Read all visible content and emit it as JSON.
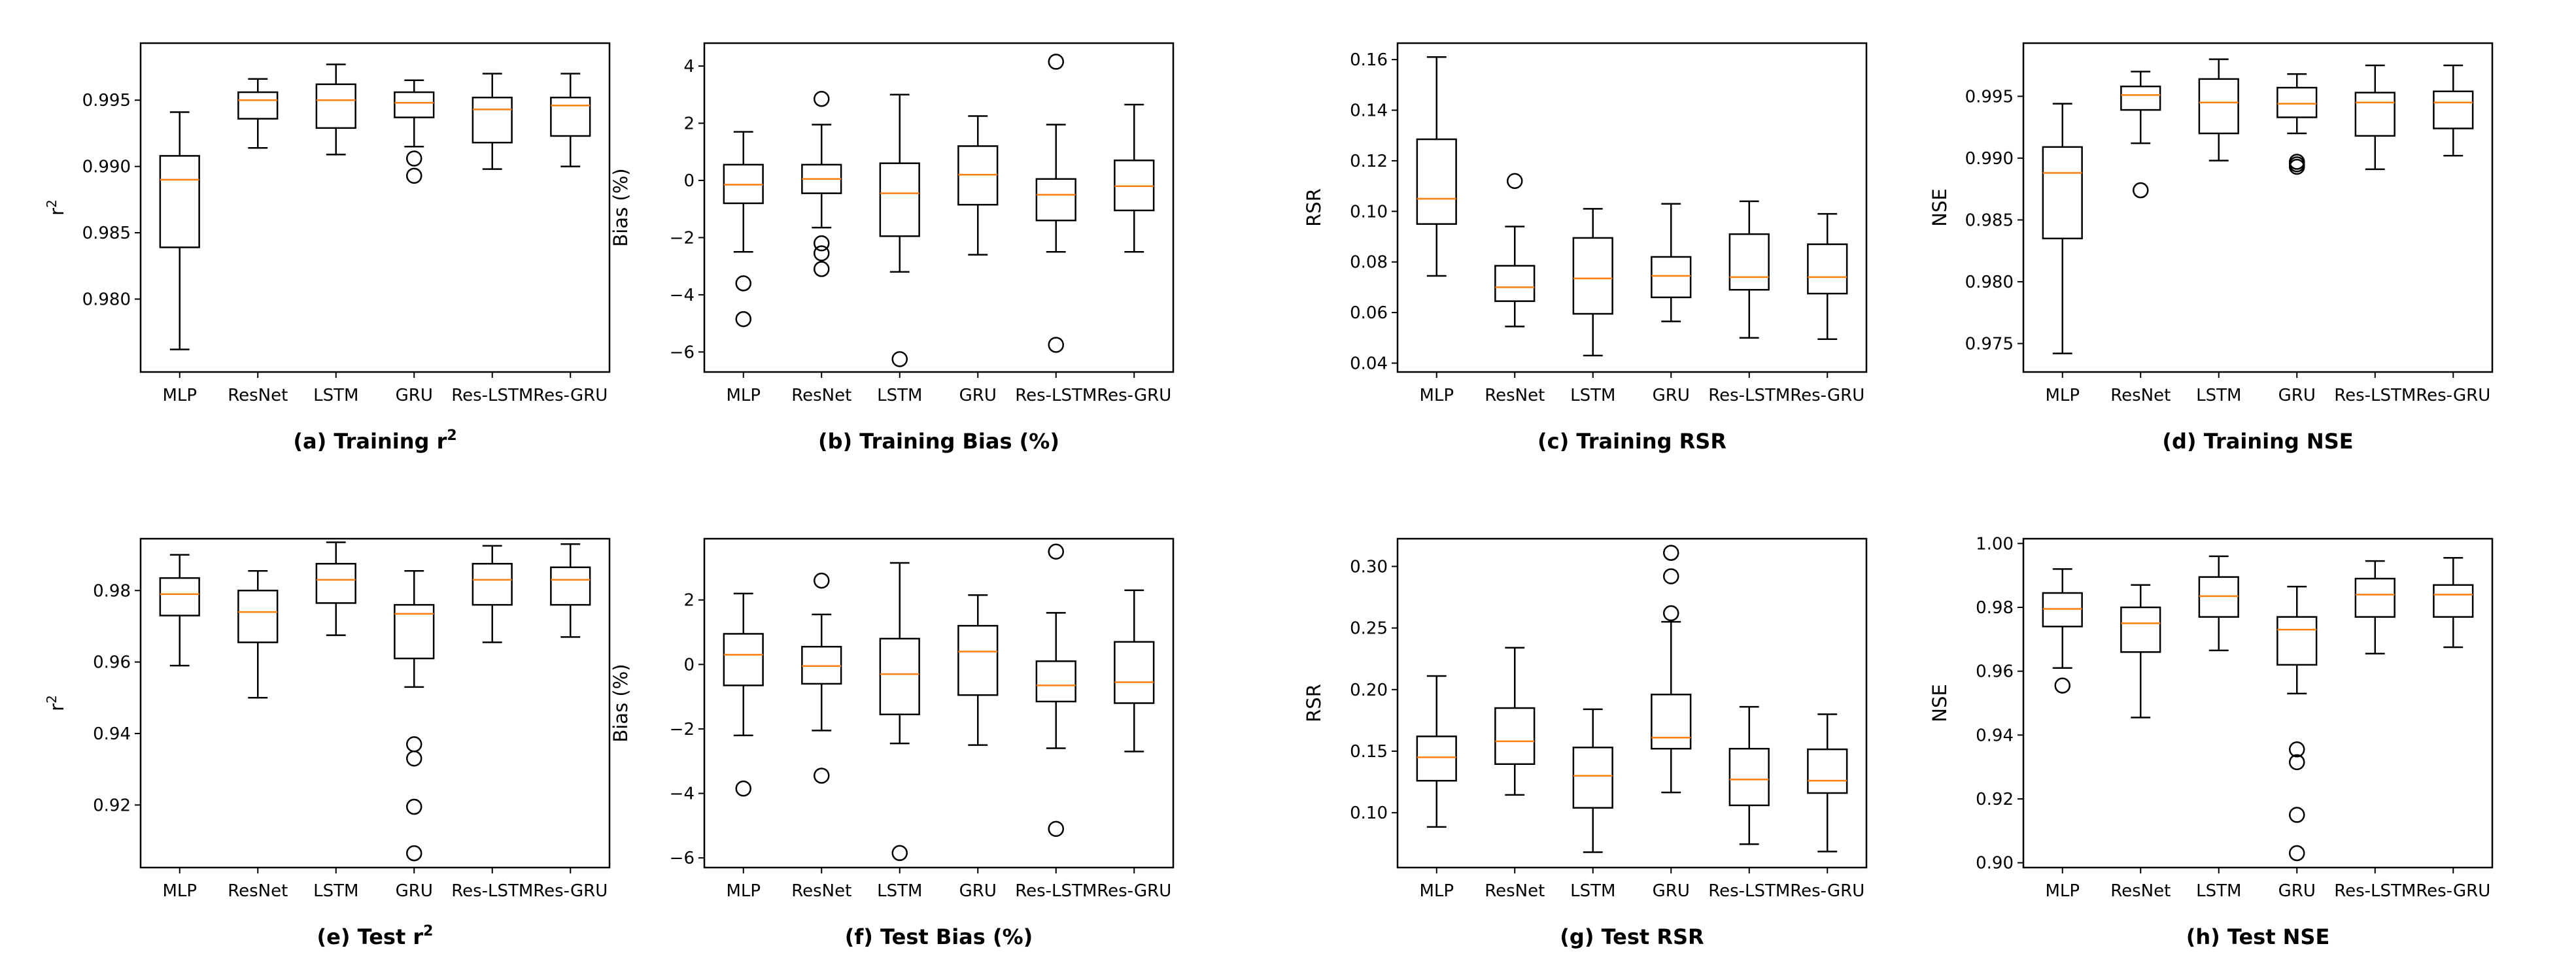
{
  "figure": {
    "categories": [
      "MLP",
      "ResNet",
      "LSTM",
      "GRU",
      "Res-LSTM",
      "Res-GRU"
    ],
    "colors": {
      "box": "#000000",
      "median": "#ff7f0e",
      "background": "#ffffff"
    }
  },
  "chart_data": [
    {
      "id": "a",
      "type": "box",
      "caption": "(a) Training r",
      "caption_sup": "2",
      "ylabel": "r",
      "ylabel_sup": "2",
      "ylim": [
        0.9745,
        0.9993
      ],
      "yticks": [
        0.98,
        0.985,
        0.99,
        0.995
      ],
      "ytick_labels": [
        "0.980",
        "0.985",
        "0.990",
        "0.995"
      ],
      "boxes": [
        {
          "min": 0.9762,
          "q1": 0.9839,
          "median": 0.989,
          "q3": 0.9908,
          "max": 0.9941,
          "outliers": []
        },
        {
          "min": 0.9914,
          "q1": 0.9936,
          "median": 0.995,
          "q3": 0.9956,
          "max": 0.9966,
          "outliers": []
        },
        {
          "min": 0.9909,
          "q1": 0.9929,
          "median": 0.995,
          "q3": 0.9962,
          "max": 0.9977,
          "outliers": []
        },
        {
          "min": 0.9915,
          "q1": 0.9937,
          "median": 0.9948,
          "q3": 0.9956,
          "max": 0.9965,
          "outliers": [
            0.9906,
            0.9893
          ]
        },
        {
          "min": 0.9898,
          "q1": 0.9918,
          "median": 0.9943,
          "q3": 0.9952,
          "max": 0.997,
          "outliers": []
        },
        {
          "min": 0.99,
          "q1": 0.9923,
          "median": 0.9946,
          "q3": 0.9952,
          "max": 0.997,
          "outliers": []
        }
      ]
    },
    {
      "id": "b",
      "type": "box",
      "caption": "(b) Training Bias (%)",
      "ylabel": "Bias (%)",
      "ylim": [
        -6.7,
        4.8
      ],
      "yticks": [
        -6,
        -4,
        -2,
        0,
        2,
        4
      ],
      "ytick_labels": [
        "−6",
        "−4",
        "−2",
        "0",
        "2",
        "4"
      ],
      "boxes": [
        {
          "min": -2.5,
          "q1": -0.8,
          "median": -0.15,
          "q3": 0.55,
          "max": 1.7,
          "outliers": [
            -3.6,
            -4.85
          ]
        },
        {
          "min": -1.65,
          "q1": -0.45,
          "median": 0.05,
          "q3": 0.55,
          "max": 1.95,
          "outliers": [
            2.85,
            -2.2,
            -2.55,
            -3.1
          ]
        },
        {
          "min": -3.2,
          "q1": -1.95,
          "median": -0.45,
          "q3": 0.6,
          "max": 3.0,
          "outliers": [
            -6.25
          ]
        },
        {
          "min": -2.6,
          "q1": -0.85,
          "median": 0.2,
          "q3": 1.2,
          "max": 2.25,
          "outliers": []
        },
        {
          "min": -2.5,
          "q1": -1.4,
          "median": -0.5,
          "q3": 0.05,
          "max": 1.95,
          "outliers": [
            4.15,
            -5.75
          ]
        },
        {
          "min": -2.5,
          "q1": -1.05,
          "median": -0.2,
          "q3": 0.7,
          "max": 2.65,
          "outliers": []
        }
      ]
    },
    {
      "id": "c",
      "type": "box",
      "caption": "(c) Training RSR",
      "ylabel": "RSR",
      "ylim": [
        0.0365,
        0.1665
      ],
      "yticks": [
        0.04,
        0.06,
        0.08,
        0.1,
        0.12,
        0.14,
        0.16
      ],
      "ytick_labels": [
        "0.04",
        "0.06",
        "0.08",
        "0.10",
        "0.12",
        "0.14",
        "0.16"
      ],
      "boxes": [
        {
          "min": 0.0745,
          "q1": 0.095,
          "median": 0.105,
          "q3": 0.1285,
          "max": 0.161,
          "outliers": []
        },
        {
          "min": 0.0545,
          "q1": 0.0645,
          "median": 0.07,
          "q3": 0.0785,
          "max": 0.094,
          "outliers": [
            0.112
          ]
        },
        {
          "min": 0.043,
          "q1": 0.0595,
          "median": 0.0735,
          "q3": 0.0895,
          "max": 0.101,
          "outliers": []
        },
        {
          "min": 0.0565,
          "q1": 0.066,
          "median": 0.0745,
          "q3": 0.082,
          "max": 0.103,
          "outliers": []
        },
        {
          "min": 0.05,
          "q1": 0.069,
          "median": 0.074,
          "q3": 0.091,
          "max": 0.104,
          "outliers": []
        },
        {
          "min": 0.0495,
          "q1": 0.0675,
          "median": 0.074,
          "q3": 0.087,
          "max": 0.099,
          "outliers": []
        }
      ]
    },
    {
      "id": "d",
      "type": "box",
      "caption": "(d) Training NSE",
      "ylabel": "NSE",
      "ylim": [
        0.9727,
        0.9993
      ],
      "yticks": [
        0.975,
        0.98,
        0.985,
        0.99,
        0.995
      ],
      "ytick_labels": [
        "0.975",
        "0.980",
        "0.985",
        "0.990",
        "0.995"
      ],
      "boxes": [
        {
          "min": 0.9742,
          "q1": 0.9835,
          "median": 0.9888,
          "q3": 0.9909,
          "max": 0.9944,
          "outliers": []
        },
        {
          "min": 0.9912,
          "q1": 0.9939,
          "median": 0.9951,
          "q3": 0.9958,
          "max": 0.997,
          "outliers": [
            0.9874
          ]
        },
        {
          "min": 0.9898,
          "q1": 0.992,
          "median": 0.9945,
          "q3": 0.9964,
          "max": 0.998,
          "outliers": []
        },
        {
          "min": 0.992,
          "q1": 0.9933,
          "median": 0.9944,
          "q3": 0.9957,
          "max": 0.9968,
          "outliers": [
            0.9897,
            0.9895,
            0.9893
          ]
        },
        {
          "min": 0.9891,
          "q1": 0.9918,
          "median": 0.9945,
          "q3": 0.9953,
          "max": 0.9975,
          "outliers": []
        },
        {
          "min": 0.9902,
          "q1": 0.9924,
          "median": 0.9945,
          "q3": 0.9954,
          "max": 0.9975,
          "outliers": []
        }
      ]
    },
    {
      "id": "e",
      "type": "box",
      "caption": "(e) Test r",
      "caption_sup": "2",
      "ylabel": "r",
      "ylabel_sup": "2",
      "ylim": [
        0.9025,
        0.9945
      ],
      "yticks": [
        0.92,
        0.94,
        0.96,
        0.98
      ],
      "ytick_labels": [
        "0.92",
        "0.94",
        "0.96",
        "0.98"
      ],
      "boxes": [
        {
          "min": 0.959,
          "q1": 0.973,
          "median": 0.979,
          "q3": 0.9835,
          "max": 0.99,
          "outliers": []
        },
        {
          "min": 0.95,
          "q1": 0.9655,
          "median": 0.974,
          "q3": 0.98,
          "max": 0.9855,
          "outliers": []
        },
        {
          "min": 0.9675,
          "q1": 0.9765,
          "median": 0.983,
          "q3": 0.9875,
          "max": 0.9935,
          "outliers": []
        },
        {
          "min": 0.953,
          "q1": 0.961,
          "median": 0.9735,
          "q3": 0.976,
          "max": 0.9855,
          "outliers": [
            0.937,
            0.933,
            0.9195,
            0.9065
          ]
        },
        {
          "min": 0.9655,
          "q1": 0.976,
          "median": 0.983,
          "q3": 0.9875,
          "max": 0.9925,
          "outliers": []
        },
        {
          "min": 0.967,
          "q1": 0.976,
          "median": 0.983,
          "q3": 0.9865,
          "max": 0.993,
          "outliers": []
        }
      ]
    },
    {
      "id": "f",
      "type": "box",
      "caption": "(f) Test Bias (%)",
      "ylabel": "Bias (%)",
      "ylim": [
        -6.3,
        3.9
      ],
      "yticks": [
        -6,
        -4,
        -2,
        0,
        2
      ],
      "ytick_labels": [
        "−6",
        "−4",
        "−2",
        "0",
        "2"
      ],
      "boxes": [
        {
          "min": -2.2,
          "q1": -0.65,
          "median": 0.3,
          "q3": 0.95,
          "max": 2.2,
          "outliers": [
            -3.85
          ]
        },
        {
          "min": -2.05,
          "q1": -0.6,
          "median": -0.05,
          "q3": 0.55,
          "max": 1.55,
          "outliers": [
            2.6,
            -3.45
          ]
        },
        {
          "min": -2.45,
          "q1": -1.55,
          "median": -0.3,
          "q3": 0.8,
          "max": 3.15,
          "outliers": [
            -5.85
          ]
        },
        {
          "min": -2.5,
          "q1": -0.95,
          "median": 0.4,
          "q3": 1.2,
          "max": 2.15,
          "outliers": []
        },
        {
          "min": -2.6,
          "q1": -1.15,
          "median": -0.65,
          "q3": 0.1,
          "max": 1.6,
          "outliers": [
            3.5,
            -5.1
          ]
        },
        {
          "min": -2.7,
          "q1": -1.2,
          "median": -0.55,
          "q3": 0.7,
          "max": 2.3,
          "outliers": []
        }
      ]
    },
    {
      "id": "g",
      "type": "box",
      "caption": "(g) Test RSR",
      "ylabel": "RSR",
      "ylim": [
        0.0555,
        0.3225
      ],
      "yticks": [
        0.1,
        0.15,
        0.2,
        0.25,
        0.3
      ],
      "ytick_labels": [
        "0.10",
        "0.15",
        "0.20",
        "0.25",
        "0.30"
      ],
      "boxes": [
        {
          "min": 0.0885,
          "q1": 0.126,
          "median": 0.145,
          "q3": 0.162,
          "max": 0.211,
          "outliers": []
        },
        {
          "min": 0.1145,
          "q1": 0.1395,
          "median": 0.158,
          "q3": 0.185,
          "max": 0.234,
          "outliers": []
        },
        {
          "min": 0.068,
          "q1": 0.104,
          "median": 0.13,
          "q3": 0.153,
          "max": 0.184,
          "outliers": []
        },
        {
          "min": 0.1165,
          "q1": 0.152,
          "median": 0.161,
          "q3": 0.196,
          "max": 0.255,
          "outliers": [
            0.311,
            0.292,
            0.262
          ]
        },
        {
          "min": 0.0745,
          "q1": 0.106,
          "median": 0.127,
          "q3": 0.152,
          "max": 0.186,
          "outliers": []
        },
        {
          "min": 0.0685,
          "q1": 0.116,
          "median": 0.126,
          "q3": 0.1515,
          "max": 0.18,
          "outliers": []
        }
      ]
    },
    {
      "id": "h",
      "type": "box",
      "caption": "(h) Test NSE",
      "ylabel": "NSE",
      "ylim": [
        0.8985,
        1.0015
      ],
      "yticks": [
        0.9,
        0.92,
        0.94,
        0.96,
        0.98,
        1.0
      ],
      "ytick_labels": [
        "0.90",
        "0.92",
        "0.94",
        "0.96",
        "0.98",
        "1.00"
      ],
      "boxes": [
        {
          "min": 0.961,
          "q1": 0.974,
          "median": 0.9795,
          "q3": 0.9845,
          "max": 0.992,
          "outliers": [
            0.9555
          ]
        },
        {
          "min": 0.9455,
          "q1": 0.966,
          "median": 0.975,
          "q3": 0.98,
          "max": 0.987,
          "outliers": []
        },
        {
          "min": 0.9665,
          "q1": 0.977,
          "median": 0.9835,
          "q3": 0.9895,
          "max": 0.996,
          "outliers": []
        },
        {
          "min": 0.953,
          "q1": 0.962,
          "median": 0.973,
          "q3": 0.977,
          "max": 0.9865,
          "outliers": [
            0.9355,
            0.9315,
            0.915,
            0.903
          ]
        },
        {
          "min": 0.9655,
          "q1": 0.977,
          "median": 0.984,
          "q3": 0.989,
          "max": 0.9945,
          "outliers": []
        },
        {
          "min": 0.9675,
          "q1": 0.977,
          "median": 0.984,
          "q3": 0.987,
          "max": 0.9955,
          "outliers": []
        }
      ]
    }
  ]
}
